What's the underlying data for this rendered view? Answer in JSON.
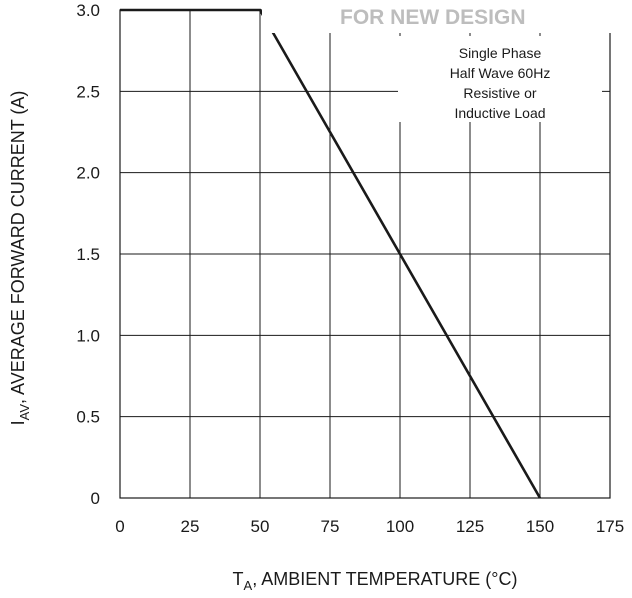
{
  "banner_text": "FOR NEW DESIGN",
  "chart_data": {
    "type": "line",
    "title": "",
    "xlabel_main": "T",
    "xlabel_sub": "A",
    "xlabel_rest": ", AMBIENT TEMPERATURE (°C)",
    "ylabel_main": "I",
    "ylabel_sub": "AV",
    "ylabel_rest": ", AVERAGE FORWARD CURRENT (A)",
    "xlim": [
      0,
      175
    ],
    "ylim": [
      0,
      3.0
    ],
    "x_ticks": [
      0,
      25,
      50,
      75,
      100,
      125,
      150,
      175
    ],
    "y_ticks": [
      0,
      0.5,
      1.0,
      1.5,
      2.0,
      2.5,
      3.0
    ],
    "x_tick_labels": [
      "0",
      "25",
      "50",
      "75",
      "100",
      "125",
      "150",
      "175"
    ],
    "y_tick_labels": [
      "0",
      "0.5",
      "1.0",
      "1.5",
      "2.0",
      "2.5",
      "3.0"
    ],
    "grid": true,
    "series": [
      {
        "x": [
          0,
          50,
          150
        ],
        "y": [
          3.0,
          3.0,
          0
        ]
      }
    ],
    "annotation_lines": [
      "Single Phase",
      "Half Wave 60Hz",
      "Resistive or",
      "Inductive Load"
    ]
  },
  "colors": {
    "line": "#1a1a1a",
    "grid": "#1a1a1a",
    "banner": "#bdbdbd"
  }
}
